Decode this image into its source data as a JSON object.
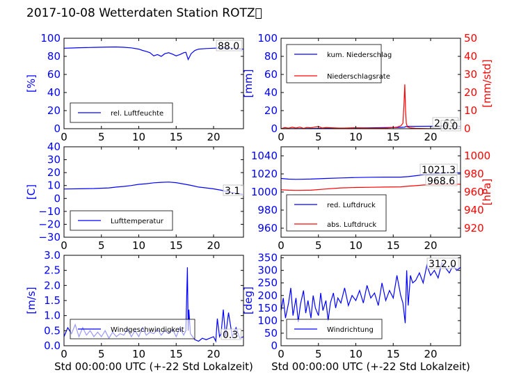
{
  "title": "2017-10-08 Wetterdaten Station ROTZ\u0000",
  "colors": {
    "primary": "#0000ff",
    "secondary": "#ff0000"
  },
  "chart_data": [
    {
      "id": "humidity",
      "type": "line",
      "xlim": [
        0,
        24
      ],
      "xticks": [
        "0",
        "5",
        "10",
        "15",
        "20"
      ],
      "ylim": [
        0,
        100
      ],
      "yticks": [
        "0",
        "20",
        "40",
        "60",
        "80",
        "100"
      ],
      "ylabel": "[%]",
      "legend": {
        "placement": "lower-left",
        "entries": [
          "rel. Luftfeuchte"
        ]
      },
      "annotation": "88.0",
      "series": [
        {
          "name": "rel. Luftfeuchte",
          "color": "#0000ff",
          "x": [
            0,
            1,
            2,
            3,
            4,
            5,
            6,
            7,
            8,
            9,
            10,
            10.5,
            11,
            11.5,
            12,
            12.5,
            13,
            13.5,
            14,
            14.5,
            15,
            15.5,
            16,
            16.3,
            16.6,
            17,
            17.5,
            18,
            19,
            20,
            21,
            22,
            23,
            24
          ],
          "y": [
            89,
            89.2,
            89.5,
            89.7,
            89.9,
            90.1,
            90.3,
            90.4,
            90,
            89.4,
            88,
            86.5,
            85.5,
            84,
            80.5,
            82,
            80,
            83,
            84,
            82.5,
            80.5,
            82,
            84,
            84.5,
            76.5,
            83,
            86.5,
            88,
            88.6,
            89,
            89.2,
            89.5,
            88.5,
            88
          ]
        }
      ]
    },
    {
      "id": "precipitation",
      "type": "line",
      "xlim": [
        0,
        24
      ],
      "xticks": [
        "0",
        "5",
        "10",
        "15",
        "20"
      ],
      "ylim": [
        0,
        100
      ],
      "yticks": [
        "0",
        "20",
        "40",
        "60",
        "80",
        "100"
      ],
      "ylabel": "[mm]",
      "y2lim": [
        0,
        50
      ],
      "y2ticks": [
        "0",
        "10",
        "20",
        "30",
        "40",
        "50"
      ],
      "y2label": "[mm/std]",
      "legend": {
        "placement": "upper-left",
        "entries": [
          "kum. Niederschlag",
          "Niederschlagsrate"
        ]
      },
      "annotations": [
        "2.69",
        "0.0"
      ],
      "series": [
        {
          "name": "kum. Niederschlag",
          "axis": "left",
          "color": "#0000ff",
          "x": [
            0,
            2,
            4,
            6,
            8,
            10,
            12,
            14,
            16,
            16.5,
            16.7,
            17,
            18,
            20,
            22,
            24
          ],
          "y": [
            0,
            0.1,
            0.2,
            0.4,
            0.6,
            0.8,
            1,
            1.2,
            1.5,
            1.7,
            2.4,
            2.6,
            2.65,
            2.69,
            2.69,
            2.69
          ]
        },
        {
          "name": "Niederschlagsrate",
          "axis": "right",
          "color": "#ff0000",
          "x": [
            0,
            0.5,
            1,
            1.5,
            2,
            2.5,
            3,
            3.5,
            4,
            4.5,
            5,
            5.5,
            6,
            8,
            10,
            12,
            14,
            15,
            15.5,
            16,
            16.3,
            16.45,
            16.55,
            16.65,
            16.75,
            16.9,
            17.2,
            18,
            20,
            22,
            24
          ],
          "y": [
            0,
            0.6,
            0.3,
            0.8,
            0.4,
            0.9,
            0.2,
            0.7,
            0.5,
            0.9,
            1.2,
            0.4,
            0.6,
            0.3,
            0.5,
            0.3,
            0.4,
            0.6,
            0.9,
            1.5,
            3,
            14,
            24.5,
            10,
            3,
            1,
            0.5,
            0.2,
            0,
            0,
            0
          ]
        }
      ]
    },
    {
      "id": "temperature",
      "type": "line",
      "xlim": [
        0,
        24
      ],
      "xticks": [
        "0",
        "5",
        "10",
        "15",
        "20"
      ],
      "ylim": [
        -30,
        40
      ],
      "yticks": [
        "−30",
        "−20",
        "−10",
        "0",
        "10",
        "20",
        "30",
        "40"
      ],
      "ylabel": "[C]",
      "legend": {
        "placement": "lower-left",
        "entries": [
          "Lufttemperatur"
        ]
      },
      "annotation": "3.1",
      "series": [
        {
          "name": "Lufttemperatur",
          "color": "#0000ff",
          "x": [
            0,
            2,
            4,
            6,
            7,
            8,
            9,
            10,
            11,
            12,
            13,
            14,
            15,
            16,
            17,
            18,
            19,
            20,
            21,
            22,
            23,
            24
          ],
          "y": [
            7.3,
            7.5,
            7.7,
            8.2,
            8.8,
            9.3,
            10,
            10.9,
            11.4,
            12.1,
            12.5,
            12.7,
            12.2,
            11.2,
            10.1,
            8.8,
            8.2,
            7.4,
            6.4,
            5,
            4,
            3.1
          ]
        }
      ]
    },
    {
      "id": "pressure",
      "type": "line",
      "xlim": [
        0,
        24
      ],
      "xticks": [
        "0",
        "5",
        "10",
        "15",
        "20"
      ],
      "ylim": [
        950,
        1050
      ],
      "yticks": [
        "960",
        "980",
        "1000",
        "1020",
        "1040"
      ],
      "y2lim": [
        910,
        1010
      ],
      "y2ticks": [
        "920",
        "940",
        "960",
        "980",
        "1000"
      ],
      "y2label": "[hPa]",
      "legend": {
        "placement": "lower-left",
        "entries": [
          "red. Luftdruck",
          "abs. Luftdruck"
        ]
      },
      "annotations": [
        "1021.3",
        "968.6"
      ],
      "series": [
        {
          "name": "red. Luftdruck",
          "axis": "left",
          "color": "#0000ff",
          "x": [
            0,
            1,
            2,
            4,
            6,
            8,
            10,
            12,
            14,
            16,
            17,
            18,
            19,
            20,
            21,
            22,
            23,
            24
          ],
          "y": [
            1015,
            1014.2,
            1014,
            1014.3,
            1015,
            1015.5,
            1016,
            1016.3,
            1016.5,
            1016.5,
            1017,
            1018,
            1019,
            1020,
            1020.5,
            1021,
            1021.3,
            1021.3
          ]
        },
        {
          "name": "abs. Luftdruck",
          "axis": "right",
          "color": "#ff0000",
          "x": [
            0,
            1,
            2,
            4,
            6,
            8,
            10,
            12,
            14,
            16,
            17,
            18,
            19,
            20,
            21,
            22,
            23,
            24
          ],
          "y": [
            962.5,
            962,
            961.8,
            962,
            963.3,
            964.5,
            965,
            965.2,
            965.5,
            965.7,
            966.5,
            967,
            967.7,
            968.2,
            968.5,
            968.6,
            968.6,
            968.6
          ]
        }
      ]
    },
    {
      "id": "wind_speed",
      "type": "line",
      "xlim": [
        0,
        24
      ],
      "xticks": [
        "0",
        "5",
        "10",
        "15",
        "20"
      ],
      "xlabel": "Std 00:00:00 UTC (+-22 Std Lokalzeit)",
      "ylim": [
        0,
        3
      ],
      "yticks": [
        "0.0",
        "0.5",
        "1.0",
        "1.5",
        "2.0",
        "2.5",
        "3.0"
      ],
      "ylabel": "[m/s]",
      "legend": {
        "placement": "lower-left",
        "entries": [
          "Windgeschwindigkeit"
        ]
      },
      "annotation": "0.3",
      "series": [
        {
          "name": "Windgeschwindigkeit",
          "color": "#0000ff",
          "x": [
            0,
            0.5,
            1,
            1.5,
            2,
            2.5,
            3,
            3.5,
            4,
            4.5,
            5,
            5.5,
            6,
            6.5,
            7,
            7.5,
            8,
            8.5,
            9,
            9.5,
            10,
            10.5,
            11,
            11.5,
            12,
            12.5,
            13,
            13.5,
            14,
            14.5,
            15,
            15.5,
            16,
            16.3,
            16.5,
            16.6,
            16.7,
            16.9,
            17.2,
            17.5,
            18,
            18.5,
            19,
            19.5,
            20,
            20.3,
            20.5,
            20.8,
            21,
            21.3,
            21.6,
            22,
            22.5,
            23,
            23.5,
            24
          ],
          "y": [
            0.3,
            0.6,
            0.4,
            0.7,
            0.3,
            0.6,
            0.35,
            0.5,
            0.3,
            0.45,
            0.3,
            0.5,
            0.25,
            0.45,
            0.3,
            0.4,
            0.35,
            0.55,
            0.3,
            0.5,
            0.3,
            0.6,
            0.35,
            0.45,
            0.4,
            0.55,
            0.35,
            0.5,
            0.4,
            0.55,
            0.3,
            0.6,
            0.35,
            0.5,
            2.6,
            0.5,
            1.2,
            0.4,
            0.3,
            0.2,
            0.15,
            0.25,
            0.2,
            0.25,
            0.3,
            0.15,
            0.9,
            0.3,
            0.4,
            1.2,
            0.3,
            1.1,
            0.3,
            0.6,
            0.25,
            0.3
          ]
        }
      ]
    },
    {
      "id": "wind_direction",
      "type": "line",
      "xlim": [
        0,
        24
      ],
      "xticks": [
        "0",
        "5",
        "10",
        "15",
        "20"
      ],
      "xlabel": "Std 00:00:00 UTC (+-22 Std Lokalzeit)",
      "ylim": [
        0,
        360
      ],
      "yticks": [
        "0",
        "50",
        "100",
        "150",
        "200",
        "250",
        "300",
        "350"
      ],
      "ylabel": "[deg]",
      "legend": {
        "placement": "lower-left",
        "entries": [
          "Windrichtung"
        ]
      },
      "annotation": "312.0",
      "series": [
        {
          "name": "Windrichtung",
          "color": "#0000ff",
          "x": [
            0,
            0.3,
            0.6,
            1,
            1.3,
            1.6,
            2,
            2.3,
            2.6,
            3,
            3.3,
            3.6,
            4,
            4.3,
            4.6,
            5,
            5.3,
            5.6,
            6,
            6.3,
            6.6,
            7,
            7.3,
            7.6,
            8,
            8.5,
            9,
            9.5,
            10,
            10.5,
            11,
            11.5,
            12,
            12.5,
            13,
            13.5,
            14,
            14.5,
            15,
            15.5,
            16,
            16.3,
            16.6,
            16.8,
            17,
            17.3,
            17.6,
            18,
            18.5,
            19,
            19.5,
            20,
            20.5,
            21,
            21.5,
            22,
            22.5,
            23,
            23.5,
            24
          ],
          "y": [
            140,
            190,
            110,
            170,
            230,
            120,
            190,
            95,
            165,
            220,
            130,
            180,
            110,
            200,
            150,
            120,
            210,
            140,
            180,
            100,
            170,
            210,
            150,
            190,
            170,
            230,
            160,
            200,
            180,
            220,
            170,
            240,
            190,
            210,
            160,
            250,
            180,
            220,
            190,
            280,
            200,
            170,
            90,
            300,
            160,
            280,
            250,
            260,
            290,
            250,
            320,
            280,
            300,
            270,
            330,
            310,
            290,
            320,
            300,
            312
          ]
        }
      ]
    }
  ]
}
